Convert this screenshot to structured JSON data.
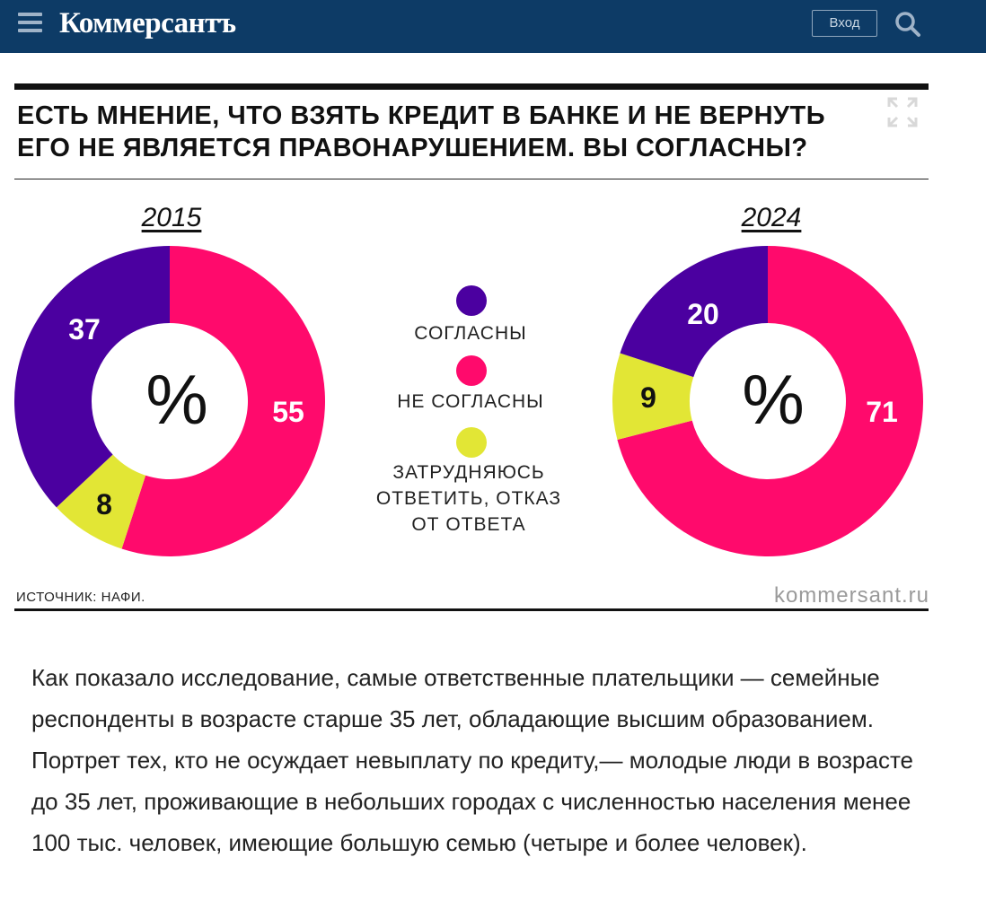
{
  "header": {
    "logo": "Коммерсантъ",
    "login_label": "Вход"
  },
  "infographic": {
    "title_line1": "ЕСТЬ МНЕНИЕ, ЧТО ВЗЯТЬ КРЕДИТ В БАНКЕ И НЕ ВЕРНУТЬ",
    "title_line2": "ЕГО НЕ ЯВЛЯЕТСЯ ПРАВОНАРУШЕНИЕМ. ВЫ СОГЛАСНЫ?",
    "percent_sign": "%",
    "legend": [
      {
        "label_lines": [
          "СОГЛАСНЫ"
        ],
        "color": "#4b00a0"
      },
      {
        "label_lines": [
          "НЕ СОГЛАСНЫ"
        ],
        "color": "#ff0a6c"
      },
      {
        "label_lines": [
          "ЗАТРУДНЯЮСЬ",
          "ОТВЕТИТЬ, ОТКАЗ",
          "ОТ ОТВЕТА"
        ],
        "color": "#e2e635"
      }
    ],
    "source": "ИСТОЧНИК: НАФИ.",
    "brand_url": "kommersant.ru"
  },
  "chart_data": [
    {
      "type": "pie",
      "title": "2015",
      "categories": [
        "СОГЛАСНЫ",
        "НЕ СОГЛАСНЫ",
        "ЗАТРУДНЯЮСЬ ОТВЕТИТЬ, ОТКАЗ ОТ ОТВЕТА"
      ],
      "values": [
        37,
        55,
        8
      ],
      "labels": [
        "37",
        "55",
        "8"
      ],
      "colors": [
        "#4b00a0",
        "#ff0a6c",
        "#e2e635"
      ]
    },
    {
      "type": "pie",
      "title": "2024",
      "categories": [
        "СОГЛАСНЫ",
        "НЕ СОГЛАСНЫ",
        "ЗАТРУДНЯЮСЬ ОТВЕТИТЬ, ОТКАЗ ОТ ОТВЕТА"
      ],
      "values": [
        20,
        71,
        9
      ],
      "labels": [
        "20",
        "71",
        "9"
      ],
      "colors": [
        "#4b00a0",
        "#ff0a6c",
        "#e2e635"
      ]
    }
  ],
  "article": {
    "text": "Как показало исследование, самые ответственные плательщики — семейные респонденты в возрасте старше 35 лет, обладающие высшим образованием. Портрет тех, кто не осуждает невыплату по кредиту,— молодые люди в возрасте до 35 лет, проживающие в небольших городах с численностью населения менее 100 тыс. человек, имеющие большую семью (четыре и более человек)."
  }
}
